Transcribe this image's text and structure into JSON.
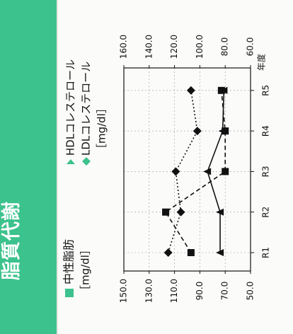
{
  "section": {
    "title": "脂質代謝"
  },
  "legend": {
    "triglyceride": {
      "label": "中性脂肪",
      "unit": "［mg/dl］",
      "marker_shape": "square-icon"
    },
    "cholesterol": {
      "hdl_label": "HDLコレステロール",
      "ldl_label": "LDLコレステロール",
      "unit": "［mg/dl］",
      "hdl_marker_shape": "triangle-icon",
      "ldl_marker_shape": "diamond-icon"
    }
  },
  "colors": {
    "accent_green": "#3cc28c",
    "ink": "#111111",
    "paper": "#fbfbfa"
  },
  "chart_data": {
    "type": "line",
    "orientation": "rotated-90-ccw",
    "categories": [
      "R1",
      "R2",
      "R3",
      "R4",
      "R5"
    ],
    "category_axis_label": "年度",
    "left_axis": {
      "label": "中性脂肪［mg/dl］",
      "ticks": [
        "150.0",
        "130.0",
        "110.0",
        "90.0",
        "70.0",
        "50.0"
      ],
      "range": [
        50,
        150
      ]
    },
    "right_axis": {
      "label": "コレステロール［mg/dl］",
      "ticks": [
        "160.0",
        "140.0",
        "120.0",
        "100.0",
        "80.0",
        "60.0"
      ],
      "range": [
        60,
        160
      ]
    },
    "series": [
      {
        "name": "中性脂肪",
        "axis": "left",
        "marker": "square",
        "line_style": "dashed",
        "values": [
          97,
          117,
          70,
          70,
          73
        ]
      },
      {
        "name": "HDLコレステロール",
        "axis": "right",
        "marker": "triangle",
        "line_style": "solid",
        "values": [
          84,
          84,
          94,
          82,
          81
        ]
      },
      {
        "name": "LDLコレステロール",
        "axis": "right",
        "marker": "diamond",
        "line_style": "dotted",
        "values": [
          125,
          115,
          119,
          102,
          107
        ]
      }
    ]
  }
}
